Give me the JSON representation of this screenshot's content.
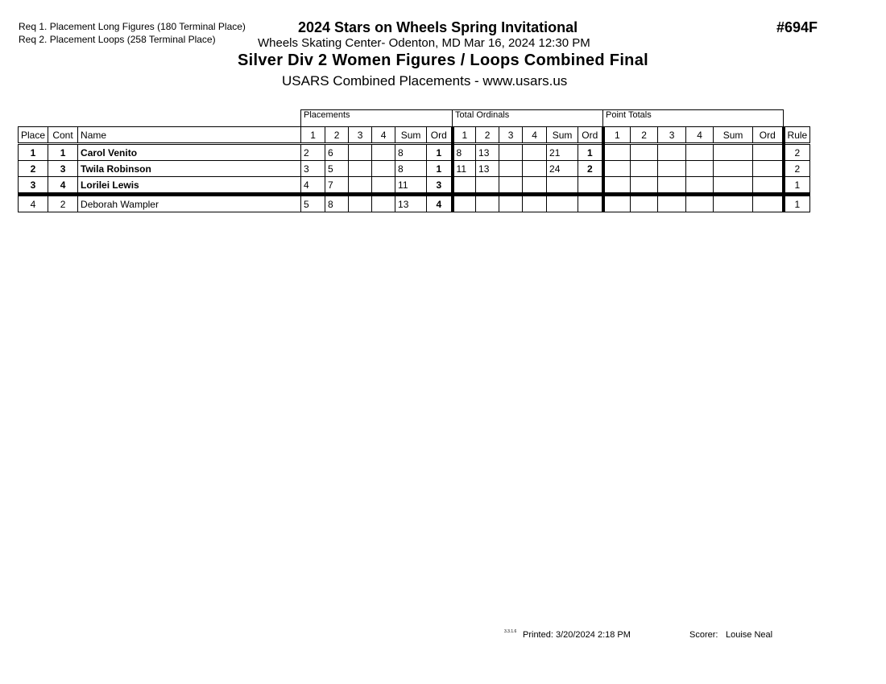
{
  "header": {
    "requirements": [
      "Req  1.  Placement Long Figures (180 Terminal Place)",
      "Req  2.  Placement Loops (258 Terminal Place)"
    ],
    "competition": "2024 Stars on Wheels Spring Invitational",
    "venue_date": "Wheels Skating Center- Odenton, MD  Mar 16, 2024  12:30 PM",
    "event": "Silver Div 2 Women Figures / Loops Combined Final",
    "subtitle": "USARS Combined Placements - www.usars.us",
    "event_number": "#694F"
  },
  "table": {
    "groups": [
      "Placements",
      "Total Ordinals",
      "Point Totals"
    ],
    "columns": [
      "Place",
      "Cont",
      "Name",
      "1",
      "2",
      "3",
      "4",
      "Sum",
      "Ord",
      "1",
      "2",
      "3",
      "4",
      "Sum",
      "Ord",
      "1",
      "2",
      "3",
      "4",
      "Sum",
      "Ord",
      "Rule"
    ],
    "rows": [
      {
        "bold": true,
        "cells": [
          "1",
          "1",
          "Carol Venito",
          "2",
          "6",
          "",
          "",
          "8",
          "1",
          "8",
          "13",
          "",
          "",
          "21",
          "1",
          "",
          "",
          "",
          "",
          "",
          "",
          "2"
        ]
      },
      {
        "bold": true,
        "cells": [
          "2",
          "3",
          "Twila Robinson",
          "3",
          "5",
          "",
          "",
          "8",
          "1",
          "11",
          "13",
          "",
          "",
          "24",
          "2",
          "",
          "",
          "",
          "",
          "",
          "",
          "2"
        ]
      },
      {
        "bold": true,
        "cells": [
          "3",
          "4",
          "Lorilei Lewis",
          "4",
          "7",
          "",
          "",
          "11",
          "3",
          "",
          "",
          "",
          "",
          "",
          "",
          "",
          "",
          "",
          "",
          "",
          "",
          "1"
        ]
      },
      {
        "bold": false,
        "cells": [
          "4",
          "2",
          "Deborah Wampler",
          "5",
          "8",
          "",
          "",
          "13",
          "4",
          "",
          "",
          "",
          "",
          "",
          "",
          "",
          "",
          "",
          "",
          "",
          "",
          "1"
        ]
      }
    ]
  },
  "footer": {
    "version": "3.3.1.6",
    "printed": "Printed:  3/20/2024  2:18 PM",
    "scorer_label": "Scorer:",
    "scorer": "Louise Neal"
  }
}
